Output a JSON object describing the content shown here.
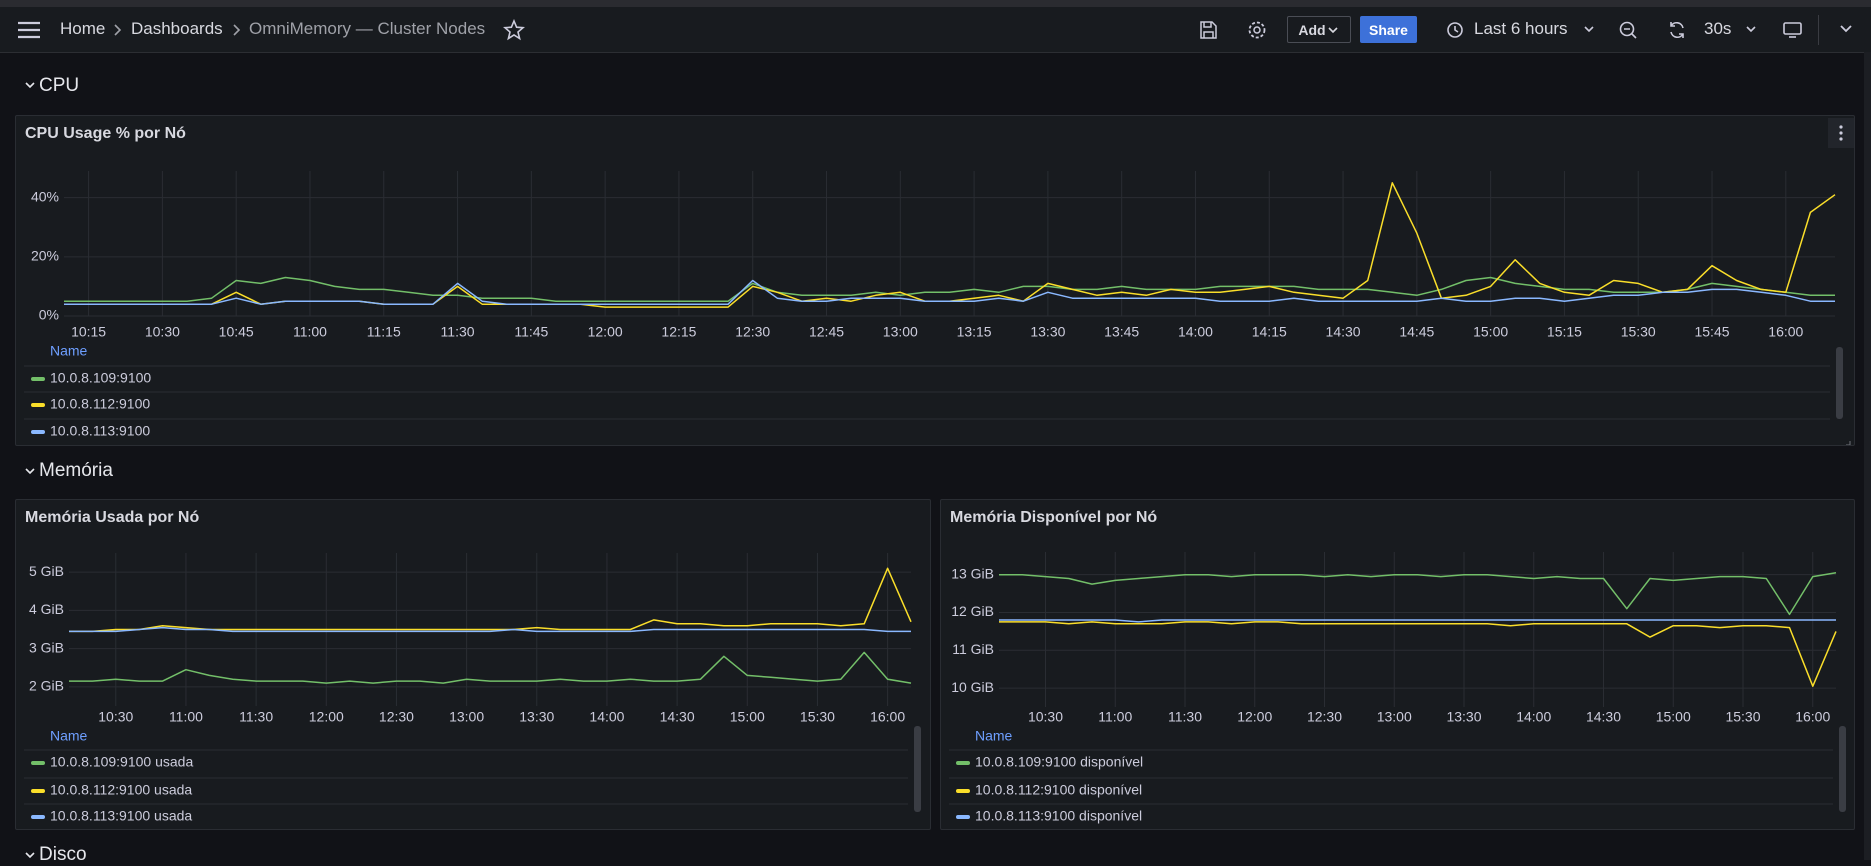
{
  "topbar": {
    "breadcrumbs": [
      "Home",
      "Dashboards",
      "OmniMemory — Cluster Nodes"
    ],
    "add": "Add",
    "share": "Share",
    "time_range": "Last 6 hours",
    "refresh": "30s"
  },
  "sections": [
    "CPU",
    "Memória",
    "Disco"
  ],
  "chart_data": [
    {
      "type": "line",
      "title": "CPU Usage % por Nó",
      "legend_header": "Name",
      "grid": true,
      "x": [
        "10:10",
        "10:15",
        "10:20",
        "10:25",
        "10:30",
        "10:35",
        "10:40",
        "10:45",
        "10:50",
        "10:55",
        "11:00",
        "11:05",
        "11:10",
        "11:15",
        "11:20",
        "11:25",
        "11:30",
        "11:35",
        "11:40",
        "11:45",
        "11:50",
        "11:55",
        "12:00",
        "12:05",
        "12:10",
        "12:15",
        "12:20",
        "12:25",
        "12:30",
        "12:35",
        "12:40",
        "12:45",
        "12:50",
        "12:55",
        "13:00",
        "13:05",
        "13:10",
        "13:15",
        "13:20",
        "13:25",
        "13:30",
        "13:35",
        "13:40",
        "13:45",
        "13:50",
        "13:55",
        "14:00",
        "14:05",
        "14:10",
        "14:15",
        "14:20",
        "14:25",
        "14:30",
        "14:35",
        "14:40",
        "14:45",
        "14:50",
        "14:55",
        "15:00",
        "15:05",
        "15:10",
        "15:15",
        "15:20",
        "15:25",
        "15:30",
        "15:35",
        "15:40",
        "15:45",
        "15:50",
        "15:55",
        "16:00",
        "16:05",
        "16:10"
      ],
      "xlim": [
        "10:10",
        "16:10"
      ],
      "xticks": [
        "10:15",
        "10:30",
        "10:45",
        "11:00",
        "11:15",
        "11:30",
        "11:45",
        "12:00",
        "12:15",
        "12:30",
        "12:45",
        "13:00",
        "13:15",
        "13:30",
        "13:45",
        "14:00",
        "14:15",
        "14:30",
        "14:45",
        "15:00",
        "15:15",
        "15:30",
        "15:45",
        "16:00"
      ],
      "ylim": [
        0,
        49
      ],
      "yticks": [
        {
          "value": 0,
          "label": "0%"
        },
        {
          "value": 20,
          "label": "20%"
        },
        {
          "value": 40,
          "label": "40%"
        }
      ],
      "series": [
        {
          "name": "10.0.8.109:9100",
          "color": "#73bf69",
          "values": [
            5,
            5,
            5,
            5,
            5,
            5,
            6,
            12,
            11,
            13,
            12,
            10,
            9,
            9,
            8,
            7,
            7,
            6,
            6,
            6,
            5,
            5,
            5,
            5,
            5,
            5,
            5,
            5,
            11,
            8,
            7,
            7,
            7,
            8,
            7,
            8,
            8,
            9,
            8,
            10,
            10,
            9,
            9,
            10,
            9,
            9,
            9,
            10,
            10,
            10,
            10,
            9,
            9,
            9,
            8,
            7,
            9,
            12,
            13,
            11,
            10,
            9,
            9,
            8,
            8,
            8,
            9,
            11,
            10,
            9,
            8,
            7,
            7
          ]
        },
        {
          "name": "10.0.8.112:9100",
          "color": "#fade2a",
          "values": [
            4,
            4,
            4,
            4,
            4,
            4,
            4,
            8,
            4,
            5,
            5,
            5,
            5,
            4,
            4,
            4,
            10,
            4,
            4,
            4,
            4,
            4,
            3,
            3,
            3,
            3,
            3,
            3,
            10,
            8,
            5,
            6,
            5,
            7,
            8,
            5,
            5,
            6,
            7,
            5,
            11,
            9,
            7,
            8,
            7,
            9,
            8,
            8,
            9,
            10,
            8,
            7,
            6,
            12,
            45,
            28,
            6,
            7,
            10,
            19,
            11,
            8,
            7,
            12,
            11,
            8,
            9,
            17,
            12,
            9,
            8,
            35,
            41
          ]
        },
        {
          "name": "10.0.8.113:9100",
          "color": "#8ab8ff",
          "values": [
            4,
            4,
            4,
            4,
            4,
            4,
            4,
            6,
            4,
            5,
            5,
            5,
            5,
            4,
            4,
            4,
            11,
            5,
            4,
            4,
            4,
            4,
            4,
            4,
            4,
            4,
            4,
            4,
            12,
            6,
            5,
            5,
            6,
            6,
            6,
            5,
            5,
            5,
            6,
            5,
            8,
            6,
            6,
            6,
            6,
            6,
            6,
            5,
            5,
            5,
            6,
            5,
            5,
            5,
            5,
            5,
            6,
            5,
            5,
            6,
            6,
            5,
            6,
            7,
            7,
            8,
            8,
            9,
            9,
            8,
            7,
            5,
            5
          ]
        }
      ]
    },
    {
      "type": "line",
      "title": "Memória Usada por Nó",
      "legend_header": "Name",
      "grid": true,
      "x": [
        "10:10",
        "10:20",
        "10:30",
        "10:40",
        "10:50",
        "11:00",
        "11:10",
        "11:20",
        "11:30",
        "11:40",
        "11:50",
        "12:00",
        "12:10",
        "12:20",
        "12:30",
        "12:40",
        "12:50",
        "13:00",
        "13:10",
        "13:20",
        "13:30",
        "13:40",
        "13:50",
        "14:00",
        "14:10",
        "14:20",
        "14:30",
        "14:40",
        "14:50",
        "15:00",
        "15:10",
        "15:20",
        "15:30",
        "15:40",
        "15:50",
        "16:00",
        "16:10"
      ],
      "xlim": [
        "10:10",
        "16:10"
      ],
      "xticks": [
        "10:30",
        "11:00",
        "11:30",
        "12:00",
        "12:30",
        "13:00",
        "13:30",
        "14:00",
        "14:30",
        "15:00",
        "15:30",
        "16:00"
      ],
      "ylim": [
        1.5,
        5.5
      ],
      "yticks": [
        {
          "value": 2,
          "label": "2 GiB"
        },
        {
          "value": 3,
          "label": "3 GiB"
        },
        {
          "value": 4,
          "label": "4 GiB"
        },
        {
          "value": 5,
          "label": "5 GiB"
        }
      ],
      "series": [
        {
          "name": "10.0.8.109:9100 usada",
          "color": "#73bf69",
          "values": [
            2.15,
            2.15,
            2.2,
            2.15,
            2.15,
            2.45,
            2.3,
            2.2,
            2.15,
            2.15,
            2.15,
            2.1,
            2.15,
            2.1,
            2.15,
            2.15,
            2.1,
            2.2,
            2.15,
            2.15,
            2.15,
            2.2,
            2.15,
            2.15,
            2.2,
            2.15,
            2.15,
            2.2,
            2.8,
            2.3,
            2.25,
            2.2,
            2.15,
            2.2,
            2.9,
            2.2,
            2.1
          ]
        },
        {
          "name": "10.0.8.112:9100 usada",
          "color": "#fade2a",
          "values": [
            3.45,
            3.45,
            3.5,
            3.5,
            3.6,
            3.55,
            3.5,
            3.5,
            3.5,
            3.5,
            3.5,
            3.5,
            3.5,
            3.5,
            3.5,
            3.5,
            3.5,
            3.5,
            3.5,
            3.5,
            3.55,
            3.5,
            3.5,
            3.5,
            3.5,
            3.75,
            3.65,
            3.65,
            3.6,
            3.6,
            3.65,
            3.65,
            3.65,
            3.6,
            3.65,
            5.1,
            3.7
          ]
        },
        {
          "name": "10.0.8.113:9100 usada",
          "color": "#8ab8ff",
          "values": [
            3.45,
            3.45,
            3.45,
            3.5,
            3.55,
            3.5,
            3.5,
            3.45,
            3.45,
            3.45,
            3.45,
            3.45,
            3.45,
            3.45,
            3.45,
            3.45,
            3.45,
            3.45,
            3.45,
            3.5,
            3.45,
            3.45,
            3.45,
            3.45,
            3.45,
            3.5,
            3.5,
            3.5,
            3.5,
            3.5,
            3.5,
            3.5,
            3.5,
            3.5,
            3.5,
            3.45,
            3.45
          ]
        }
      ]
    },
    {
      "type": "line",
      "title": "Memória Disponível por Nó",
      "legend_header": "Name",
      "grid": true,
      "x": [
        "10:10",
        "10:20",
        "10:30",
        "10:40",
        "10:50",
        "11:00",
        "11:10",
        "11:20",
        "11:30",
        "11:40",
        "11:50",
        "12:00",
        "12:10",
        "12:20",
        "12:30",
        "12:40",
        "12:50",
        "13:00",
        "13:10",
        "13:20",
        "13:30",
        "13:40",
        "13:50",
        "14:00",
        "14:10",
        "14:20",
        "14:30",
        "14:40",
        "14:50",
        "15:00",
        "15:10",
        "15:20",
        "15:30",
        "15:40",
        "15:50",
        "16:00",
        "16:10"
      ],
      "xlim": [
        "10:10",
        "16:10"
      ],
      "xticks": [
        "10:30",
        "11:00",
        "11:30",
        "12:00",
        "12:30",
        "13:00",
        "13:30",
        "14:00",
        "14:30",
        "15:00",
        "15:30",
        "16:00"
      ],
      "ylim": [
        9.5,
        13.6
      ],
      "yticks": [
        {
          "value": 10,
          "label": "10 GiB"
        },
        {
          "value": 11,
          "label": "11 GiB"
        },
        {
          "value": 12,
          "label": "12 GiB"
        },
        {
          "value": 13,
          "label": "13 GiB"
        }
      ],
      "series": [
        {
          "name": "10.0.8.109:9100 disponível",
          "color": "#73bf69",
          "values": [
            13.0,
            13.0,
            12.95,
            12.9,
            12.75,
            12.85,
            12.9,
            12.95,
            13.0,
            13.0,
            12.95,
            13.0,
            13.0,
            13.0,
            12.95,
            13.0,
            12.95,
            13.0,
            13.0,
            12.95,
            13.0,
            13.0,
            12.95,
            12.9,
            12.95,
            12.9,
            12.9,
            12.1,
            12.9,
            12.85,
            12.9,
            12.95,
            12.95,
            12.9,
            11.95,
            12.95,
            13.05
          ]
        },
        {
          "name": "10.0.8.112:9100 disponível",
          "color": "#fade2a",
          "values": [
            11.75,
            11.75,
            11.75,
            11.7,
            11.75,
            11.7,
            11.7,
            11.7,
            11.75,
            11.75,
            11.7,
            11.75,
            11.75,
            11.7,
            11.7,
            11.7,
            11.7,
            11.7,
            11.7,
            11.7,
            11.7,
            11.7,
            11.65,
            11.7,
            11.7,
            11.7,
            11.7,
            11.7,
            11.35,
            11.65,
            11.65,
            11.6,
            11.65,
            11.65,
            11.6,
            10.05,
            11.5
          ]
        },
        {
          "name": "10.0.8.113:9100 disponível",
          "color": "#8ab8ff",
          "values": [
            11.8,
            11.8,
            11.8,
            11.8,
            11.8,
            11.8,
            11.75,
            11.8,
            11.8,
            11.8,
            11.8,
            11.8,
            11.8,
            11.8,
            11.8,
            11.8,
            11.8,
            11.8,
            11.8,
            11.8,
            11.8,
            11.8,
            11.8,
            11.8,
            11.8,
            11.8,
            11.8,
            11.8,
            11.8,
            11.8,
            11.8,
            11.8,
            11.8,
            11.8,
            11.8,
            11.8,
            11.8
          ]
        }
      ]
    }
  ]
}
